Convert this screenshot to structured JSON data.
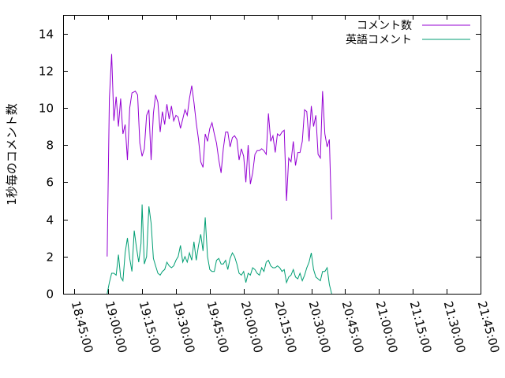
{
  "chart_data": {
    "type": "line",
    "title": "",
    "xlabel": "",
    "ylabel": "1秒毎のコメント数",
    "ylim": [
      0,
      15
    ],
    "yticks": [
      0,
      2,
      4,
      6,
      8,
      10,
      12,
      14
    ],
    "xlim": [
      "18:40:00",
      "21:45:00"
    ],
    "xticks": [
      "18:45:00",
      "19:00:00",
      "19:15:00",
      "19:30:00",
      "19:45:00",
      "20:00:00",
      "20:15:00",
      "20:30:00",
      "20:45:00",
      "21:00:00",
      "21:15:00",
      "21:30:00",
      "21:45:00"
    ],
    "grid": false,
    "legend_position": "top-right",
    "series": [
      {
        "name": "コメント数",
        "color": "#9400d3",
        "points": [
          [
            "18:59:30",
            2.0
          ],
          [
            "19:00:30",
            10.5
          ],
          [
            "19:01:30",
            12.9
          ],
          [
            "19:02:30",
            9.3
          ],
          [
            "19:03:30",
            10.6
          ],
          [
            "19:04:30",
            9.0
          ],
          [
            "19:05:30",
            10.5
          ],
          [
            "19:06:30",
            8.6
          ],
          [
            "19:07:30",
            9.1
          ],
          [
            "19:08:30",
            7.2
          ],
          [
            "19:09:30",
            10.0
          ],
          [
            "19:10:30",
            10.8
          ],
          [
            "19:12:00",
            10.9
          ],
          [
            "19:13:00",
            10.7
          ],
          [
            "19:14:00",
            8.1
          ],
          [
            "19:15:00",
            7.4
          ],
          [
            "19:16:00",
            7.8
          ],
          [
            "19:17:00",
            9.6
          ],
          [
            "19:18:00",
            9.9
          ],
          [
            "19:19:00",
            7.2
          ],
          [
            "19:20:00",
            9.7
          ],
          [
            "19:21:00",
            10.7
          ],
          [
            "19:22:00",
            10.3
          ],
          [
            "19:23:00",
            8.7
          ],
          [
            "19:24:00",
            9.8
          ],
          [
            "19:25:00",
            9.1
          ],
          [
            "19:26:00",
            10.2
          ],
          [
            "19:27:00",
            9.4
          ],
          [
            "19:28:00",
            10.1
          ],
          [
            "19:29:00",
            9.3
          ],
          [
            "19:30:00",
            9.6
          ],
          [
            "19:31:00",
            9.5
          ],
          [
            "19:32:00",
            8.9
          ],
          [
            "19:33:00",
            9.4
          ],
          [
            "19:34:00",
            9.9
          ],
          [
            "19:35:00",
            9.6
          ],
          [
            "19:36:00",
            10.5
          ],
          [
            "19:37:00",
            11.2
          ],
          [
            "19:38:00",
            10.3
          ],
          [
            "19:39:00",
            9.2
          ],
          [
            "19:40:00",
            8.3
          ],
          [
            "19:41:00",
            7.1
          ],
          [
            "19:42:00",
            6.8
          ],
          [
            "19:43:00",
            8.6
          ],
          [
            "19:44:00",
            8.2
          ],
          [
            "19:45:00",
            8.9
          ],
          [
            "19:46:00",
            9.2
          ],
          [
            "19:47:00",
            8.6
          ],
          [
            "19:48:00",
            8.1
          ],
          [
            "19:49:00",
            7.2
          ],
          [
            "19:50:00",
            6.5
          ],
          [
            "19:51:00",
            7.8
          ],
          [
            "19:52:00",
            8.7
          ],
          [
            "19:53:00",
            8.7
          ],
          [
            "19:54:00",
            7.9
          ],
          [
            "19:55:00",
            8.4
          ],
          [
            "19:56:00",
            8.5
          ],
          [
            "19:57:00",
            8.3
          ],
          [
            "19:58:00",
            7.2
          ],
          [
            "19:59:00",
            7.8
          ],
          [
            "20:00:00",
            7.4
          ],
          [
            "20:01:00",
            6.0
          ],
          [
            "20:02:00",
            8.0
          ],
          [
            "20:03:00",
            5.9
          ],
          [
            "20:04:00",
            6.5
          ],
          [
            "20:05:00",
            7.5
          ],
          [
            "20:06:00",
            7.7
          ],
          [
            "20:07:00",
            7.7
          ],
          [
            "20:08:00",
            7.8
          ],
          [
            "20:09:00",
            7.7
          ],
          [
            "20:10:00",
            7.5
          ],
          [
            "20:11:00",
            9.7
          ],
          [
            "20:12:00",
            8.2
          ],
          [
            "20:13:00",
            8.5
          ],
          [
            "20:14:00",
            7.6
          ],
          [
            "20:15:00",
            8.6
          ],
          [
            "20:16:00",
            8.5
          ],
          [
            "20:17:00",
            8.7
          ],
          [
            "20:18:00",
            8.8
          ],
          [
            "20:19:00",
            5.0
          ],
          [
            "20:20:00",
            7.3
          ],
          [
            "20:21:00",
            7.1
          ],
          [
            "20:22:00",
            8.2
          ],
          [
            "20:23:00",
            6.9
          ],
          [
            "20:24:00",
            7.6
          ],
          [
            "20:25:00",
            7.6
          ],
          [
            "20:26:00",
            8.2
          ],
          [
            "20:27:00",
            9.9
          ],
          [
            "20:28:00",
            9.8
          ],
          [
            "20:29:00",
            8.2
          ],
          [
            "20:30:00",
            10.1
          ],
          [
            "20:31:00",
            9.0
          ],
          [
            "20:32:00",
            9.6
          ],
          [
            "20:33:00",
            7.5
          ],
          [
            "20:34:00",
            7.3
          ],
          [
            "20:35:00",
            10.9
          ],
          [
            "20:36:00",
            8.6
          ],
          [
            "20:37:00",
            7.9
          ],
          [
            "20:38:00",
            8.3
          ],
          [
            "20:39:00",
            4.0
          ]
        ]
      },
      {
        "name": "英語コメント",
        "color": "#009e73",
        "points": [
          [
            "18:59:30",
            0.0
          ],
          [
            "19:00:30",
            0.6
          ],
          [
            "19:01:30",
            1.1
          ],
          [
            "19:02:30",
            1.1
          ],
          [
            "19:03:30",
            1.0
          ],
          [
            "19:04:30",
            2.1
          ],
          [
            "19:05:30",
            0.9
          ],
          [
            "19:06:30",
            0.7
          ],
          [
            "19:07:30",
            2.2
          ],
          [
            "19:08:30",
            3.0
          ],
          [
            "19:09:30",
            1.9
          ],
          [
            "19:10:30",
            1.2
          ],
          [
            "19:11:30",
            3.4
          ],
          [
            "19:12:30",
            2.5
          ],
          [
            "19:13:30",
            1.7
          ],
          [
            "19:14:30",
            2.7
          ],
          [
            "19:15:00",
            4.8
          ],
          [
            "19:16:00",
            1.6
          ],
          [
            "19:17:00",
            2.0
          ],
          [
            "19:18:00",
            4.7
          ],
          [
            "19:19:00",
            3.8
          ],
          [
            "19:20:00",
            1.9
          ],
          [
            "19:21:00",
            1.5
          ],
          [
            "19:22:00",
            1.1
          ],
          [
            "19:23:00",
            1.0
          ],
          [
            "19:24:00",
            1.2
          ],
          [
            "19:25:00",
            1.3
          ],
          [
            "19:26:00",
            1.7
          ],
          [
            "19:27:00",
            1.5
          ],
          [
            "19:28:00",
            1.4
          ],
          [
            "19:29:00",
            1.5
          ],
          [
            "19:30:00",
            1.8
          ],
          [
            "19:31:00",
            2.0
          ],
          [
            "19:32:00",
            2.6
          ],
          [
            "19:33:00",
            1.7
          ],
          [
            "19:34:00",
            2.0
          ],
          [
            "19:35:00",
            1.7
          ],
          [
            "19:36:00",
            2.2
          ],
          [
            "19:37:00",
            1.8
          ],
          [
            "19:38:00",
            2.8
          ],
          [
            "19:39:00",
            1.8
          ],
          [
            "19:40:00",
            2.6
          ],
          [
            "19:41:00",
            3.2
          ],
          [
            "19:42:00",
            2.3
          ],
          [
            "19:43:00",
            4.1
          ],
          [
            "19:44:00",
            2.0
          ],
          [
            "19:45:00",
            1.3
          ],
          [
            "19:46:00",
            1.2
          ],
          [
            "19:47:00",
            1.2
          ],
          [
            "19:48:00",
            1.8
          ],
          [
            "19:49:00",
            1.9
          ],
          [
            "19:50:00",
            1.6
          ],
          [
            "19:51:00",
            1.6
          ],
          [
            "19:52:00",
            1.8
          ],
          [
            "19:53:00",
            1.3
          ],
          [
            "19:54:00",
            1.9
          ],
          [
            "19:55:00",
            2.2
          ],
          [
            "19:56:00",
            2.0
          ],
          [
            "19:57:00",
            1.6
          ],
          [
            "19:58:00",
            1.1
          ],
          [
            "19:59:00",
            1.0
          ],
          [
            "20:00:00",
            1.2
          ],
          [
            "20:01:00",
            0.6
          ],
          [
            "20:02:00",
            1.1
          ],
          [
            "20:03:00",
            1.0
          ],
          [
            "20:04:00",
            1.4
          ],
          [
            "20:05:00",
            1.3
          ],
          [
            "20:06:00",
            1.1
          ],
          [
            "20:07:00",
            1.0
          ],
          [
            "20:08:00",
            1.4
          ],
          [
            "20:09:00",
            1.2
          ],
          [
            "20:10:00",
            1.7
          ],
          [
            "20:11:00",
            1.8
          ],
          [
            "20:12:00",
            1.5
          ],
          [
            "20:13:00",
            1.4
          ],
          [
            "20:14:00",
            1.4
          ],
          [
            "20:15:00",
            1.5
          ],
          [
            "20:16:00",
            1.4
          ],
          [
            "20:17:00",
            1.2
          ],
          [
            "20:18:00",
            1.3
          ],
          [
            "20:19:00",
            0.6
          ],
          [
            "20:20:00",
            0.9
          ],
          [
            "20:21:00",
            1.0
          ],
          [
            "20:22:00",
            1.3
          ],
          [
            "20:23:00",
            0.9
          ],
          [
            "20:24:00",
            0.8
          ],
          [
            "20:25:00",
            1.1
          ],
          [
            "20:26:00",
            0.7
          ],
          [
            "20:27:00",
            1.0
          ],
          [
            "20:28:00",
            1.4
          ],
          [
            "20:29:00",
            1.7
          ],
          [
            "20:30:00",
            2.2
          ],
          [
            "20:31:00",
            1.3
          ],
          [
            "20:32:00",
            0.9
          ],
          [
            "20:33:00",
            0.8
          ],
          [
            "20:34:00",
            0.7
          ],
          [
            "20:35:00",
            1.2
          ],
          [
            "20:36:00",
            1.2
          ],
          [
            "20:37:00",
            1.4
          ],
          [
            "20:38:00",
            0.5
          ],
          [
            "20:39:00",
            0.0
          ]
        ]
      }
    ]
  }
}
